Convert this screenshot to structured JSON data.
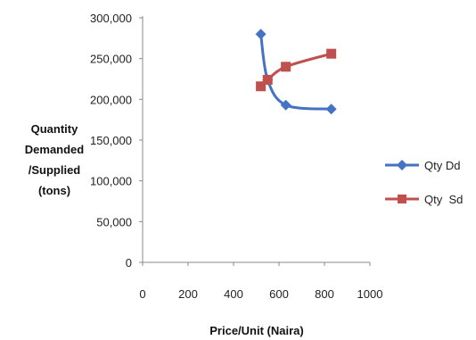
{
  "chart_data": {
    "type": "scatter",
    "xlabel": "Price/Unit (Naira)",
    "ylabel_lines": [
      "Quantity",
      "Demanded",
      "/Supplied",
      "(tons)"
    ],
    "xlim": [
      0,
      1000
    ],
    "ylim": [
      0,
      300000
    ],
    "x_ticks": [
      "0",
      "200",
      "400",
      "600",
      "800",
      "1000"
    ],
    "y_ticks": [
      "0",
      "50,000",
      "100,000",
      "150,000",
      "200,000",
      "250,000",
      "300,000"
    ],
    "grid": false,
    "legend_position": "right",
    "series": [
      {
        "name": "Qty Dd",
        "color": "#4472C4",
        "marker": "diamond",
        "smooth": true,
        "points": [
          [
            520,
            280000
          ],
          [
            550,
            224000
          ],
          [
            630,
            193000
          ],
          [
            830,
            188000
          ]
        ]
      },
      {
        "name": "Qty  Sd",
        "color": "#C0504D",
        "marker": "square",
        "smooth": true,
        "points": [
          [
            520,
            216000
          ],
          [
            550,
            224000
          ],
          [
            630,
            240000
          ],
          [
            830,
            256000
          ]
        ]
      }
    ]
  }
}
